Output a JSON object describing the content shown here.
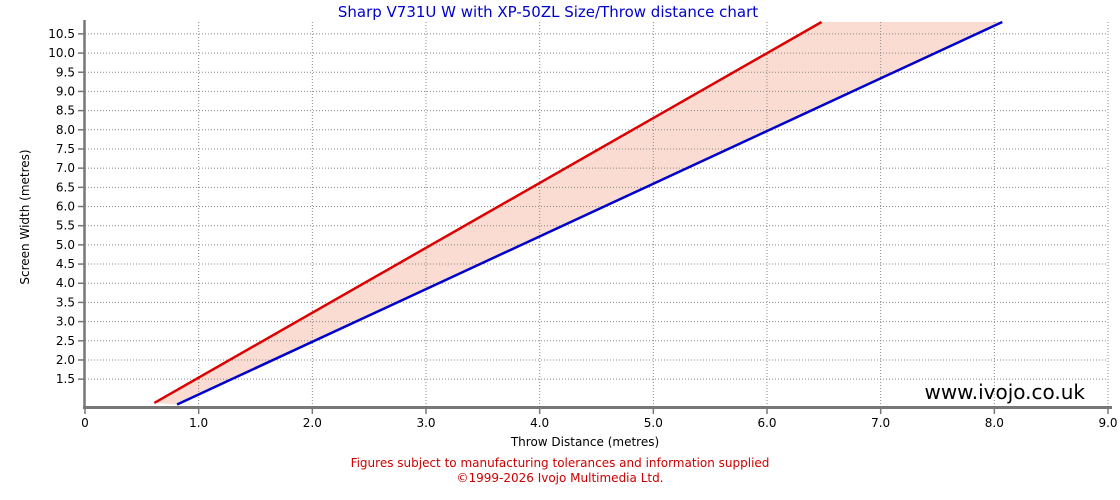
{
  "watermark": "www.ivojo.co.uk",
  "footer": {
    "line1": "Figures subject to manufacturing tolerances and information supplied",
    "line2": "©1999-2026 Ivojo Multimedia Ltd."
  },
  "colors": {
    "title": "#0000cc",
    "footer_text": "#cc0000",
    "axis": "#777777",
    "gridline": "#888888",
    "tick_text": "#000000",
    "watermark_text": "#000000",
    "band_fill": "#fadcd2",
    "wide_line": "#dd0000",
    "tele_line": "#0000cc"
  },
  "chart_data": {
    "type": "line",
    "title": "Sharp V731U W with XP-50ZL Size/Throw distance chart",
    "xlabel": "Throw Distance (metres)",
    "ylabel": "Screen Width (metres)",
    "xlim": [
      0,
      9.0
    ],
    "ylim": [
      0.8,
      10.81
    ],
    "grid": {
      "style": "dotted",
      "color": "#888888"
    },
    "legend_position": "none",
    "x_ticks": [
      {
        "v": 0,
        "label": "0"
      },
      {
        "v": 1,
        "label": "1.0"
      },
      {
        "v": 2,
        "label": "2.0"
      },
      {
        "v": 3,
        "label": "3.0"
      },
      {
        "v": 4,
        "label": "4.0"
      },
      {
        "v": 5,
        "label": "5.0"
      },
      {
        "v": 6,
        "label": "6.0"
      },
      {
        "v": 7,
        "label": "7.0"
      },
      {
        "v": 8,
        "label": "8.0"
      },
      {
        "v": 9,
        "label": "9.0"
      }
    ],
    "y_ticks": [
      {
        "v": 1.5,
        "label": "1.5"
      },
      {
        "v": 2.0,
        "label": "2.0"
      },
      {
        "v": 2.5,
        "label": "2.5"
      },
      {
        "v": 3.0,
        "label": "3.0"
      },
      {
        "v": 3.5,
        "label": "3.5"
      },
      {
        "v": 4.0,
        "label": "4.0"
      },
      {
        "v": 4.5,
        "label": "4.5"
      },
      {
        "v": 5.0,
        "label": "5.0"
      },
      {
        "v": 5.5,
        "label": "5.5"
      },
      {
        "v": 6.0,
        "label": "6.0"
      },
      {
        "v": 6.5,
        "label": "6.5"
      },
      {
        "v": 7.0,
        "label": "7.0"
      },
      {
        "v": 7.5,
        "label": "7.5"
      },
      {
        "v": 8.0,
        "label": "8.0"
      },
      {
        "v": 8.5,
        "label": "8.5"
      },
      {
        "v": 9.0,
        "label": "9.0"
      },
      {
        "v": 9.5,
        "label": "9.5"
      },
      {
        "v": 10.0,
        "label": "10.0"
      },
      {
        "v": 10.5,
        "label": "10.5"
      }
    ],
    "series": [
      {
        "id": "wide-zoom-line",
        "color": "#dd0000",
        "points": [
          [
            0.61,
            0.88
          ],
          [
            6.48,
            10.81
          ]
        ]
      },
      {
        "id": "tele-zoom-line",
        "color": "#0000cc",
        "points": [
          [
            0.81,
            0.84
          ],
          [
            8.07,
            10.81
          ]
        ]
      }
    ],
    "band_fill": "#fadcd2"
  }
}
